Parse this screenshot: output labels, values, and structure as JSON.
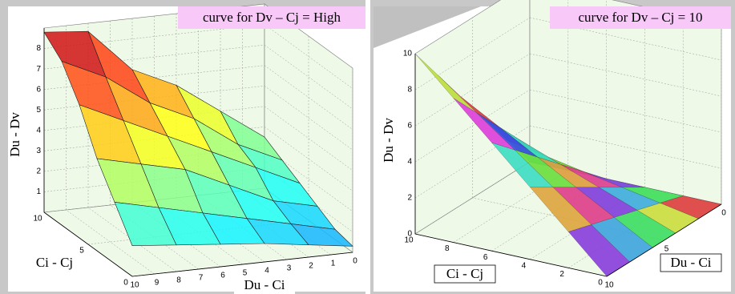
{
  "chart_data": [
    {
      "type": "surface",
      "title": "curve for Dv – Cj = High",
      "xlabel": "Du - Ci",
      "ylabel": "Ci - Cj",
      "zlabel": "Du - Dv",
      "colormap": "jet",
      "x": [
        0,
        2,
        4,
        6,
        8,
        10
      ],
      "y": [
        0,
        2,
        4,
        6,
        8,
        10
      ],
      "z": [
        [
          0.3,
          0.6,
          0.9,
          1.1,
          1.3,
          1.5
        ],
        [
          0.5,
          1,
          1.5,
          2,
          2.5,
          3
        ],
        [
          1,
          1.5,
          2.5,
          3.5,
          4,
          4.5
        ],
        [
          1.5,
          2.5,
          3.5,
          4.5,
          5.5,
          6.5
        ],
        [
          2,
          3,
          4.5,
          5.5,
          7,
          8
        ],
        [
          2.5,
          4,
          5.5,
          6.5,
          8.6,
          8.8
        ]
      ],
      "xlim": [
        0,
        10
      ],
      "ylim": [
        0,
        10
      ],
      "zlim": [
        0,
        9
      ],
      "xticks": [
        0,
        1,
        2,
        3,
        4,
        5,
        6,
        7,
        8,
        9,
        10
      ],
      "yticks": [
        0,
        5,
        10
      ],
      "zticks": [
        1,
        2,
        3,
        4,
        5,
        6,
        7,
        8
      ],
      "grid": true
    },
    {
      "type": "surface",
      "title": "curve for Dv – Cj = 10",
      "xlabel": "Du - Ci",
      "ylabel": "Ci - Cj",
      "zlabel": "Du - Dv",
      "colormap": "hsv",
      "x": [
        0,
        2,
        4,
        6,
        8,
        10
      ],
      "y": [
        0,
        2,
        4,
        6,
        8,
        10
      ],
      "z": [
        [
          0,
          0,
          0,
          0,
          0,
          0
        ],
        [
          0,
          0.4,
          0.8,
          1.2,
          1.6,
          2
        ],
        [
          0,
          0.8,
          1.6,
          2.4,
          3.2,
          4
        ],
        [
          0,
          1.2,
          2.4,
          3.6,
          4.8,
          6
        ],
        [
          0,
          1.6,
          3.2,
          4.8,
          6.4,
          8
        ],
        [
          0,
          2,
          4,
          6,
          8,
          10
        ]
      ],
      "xlim": [
        0,
        10
      ],
      "ylim": [
        0,
        10
      ],
      "zlim": [
        0,
        10
      ],
      "xticks": [
        0,
        5,
        10
      ],
      "yticks": [
        0,
        2,
        4,
        6,
        8,
        10
      ],
      "zticks": [
        0,
        2,
        4,
        6,
        8,
        10
      ],
      "grid": true
    }
  ]
}
